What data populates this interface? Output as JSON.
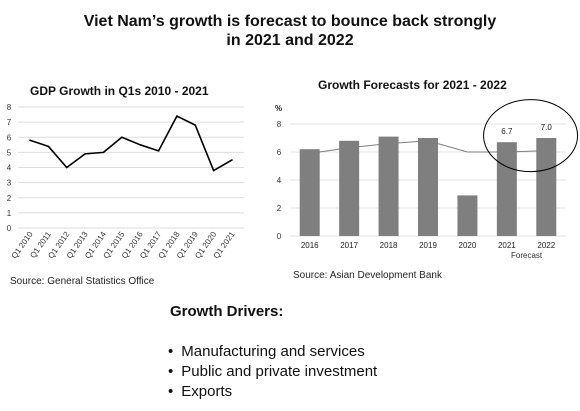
{
  "slide": {
    "title_line1": "Viet Nam’s growth is forecast to bounce back strongly",
    "title_line2": "in 2021 and 2022"
  },
  "chart_data": [
    {
      "type": "line",
      "title": "GDP Growth in Q1s 2010 - 2021",
      "categories": [
        "Q1 2010",
        "Q1 2011",
        "Q1 2012",
        "Q1 2013",
        "Q1 2014",
        "Q1 2015",
        "Q1 2016",
        "Q1 2017",
        "Q1 2018",
        "Q1 2019",
        "Q1 2020",
        "Q1 2021"
      ],
      "series": [
        {
          "values": [
            5.8,
            5.4,
            4.0,
            4.9,
            5.0,
            6.0,
            5.5,
            5.1,
            7.4,
            6.8,
            3.8,
            4.5
          ]
        }
      ],
      "ylim": [
        0,
        8
      ],
      "yticks": [
        "0",
        "1",
        "2",
        "3",
        "4",
        "5",
        "6",
        "7",
        "8"
      ],
      "grid": true,
      "source": "Source: General Statistics Office"
    },
    {
      "type": "bar",
      "title": "Growth Forecasts for 2021 - 2022",
      "ylabel": "%",
      "categories": [
        "2016",
        "2017",
        "2018",
        "2019",
        "2020",
        "2021",
        "2022"
      ],
      "category_note": "Forecast",
      "series": [
        {
          "type": "bar",
          "values": [
            6.2,
            6.8,
            7.1,
            7.0,
            2.9,
            6.7,
            7.0
          ]
        },
        {
          "type": "line",
          "values": [
            5.9,
            6.3,
            6.6,
            6.8,
            6.0,
            6.0,
            6.1
          ]
        }
      ],
      "data_labels": {
        "2021": "6.7",
        "2022": "7.0"
      },
      "highlight": "circle around 2021 and 2022",
      "ylim": [
        0,
        8
      ],
      "yticks": [
        "0",
        "2",
        "4",
        "6",
        "8"
      ],
      "grid": true,
      "bar_color": "#7f7f7f",
      "line_color": "#7f7f7f",
      "source": "Source: Asian Development Bank"
    }
  ],
  "drivers": {
    "title": "Growth Drivers:",
    "items": [
      "Manufacturing and services",
      "Public and private investment",
      "Exports"
    ]
  }
}
